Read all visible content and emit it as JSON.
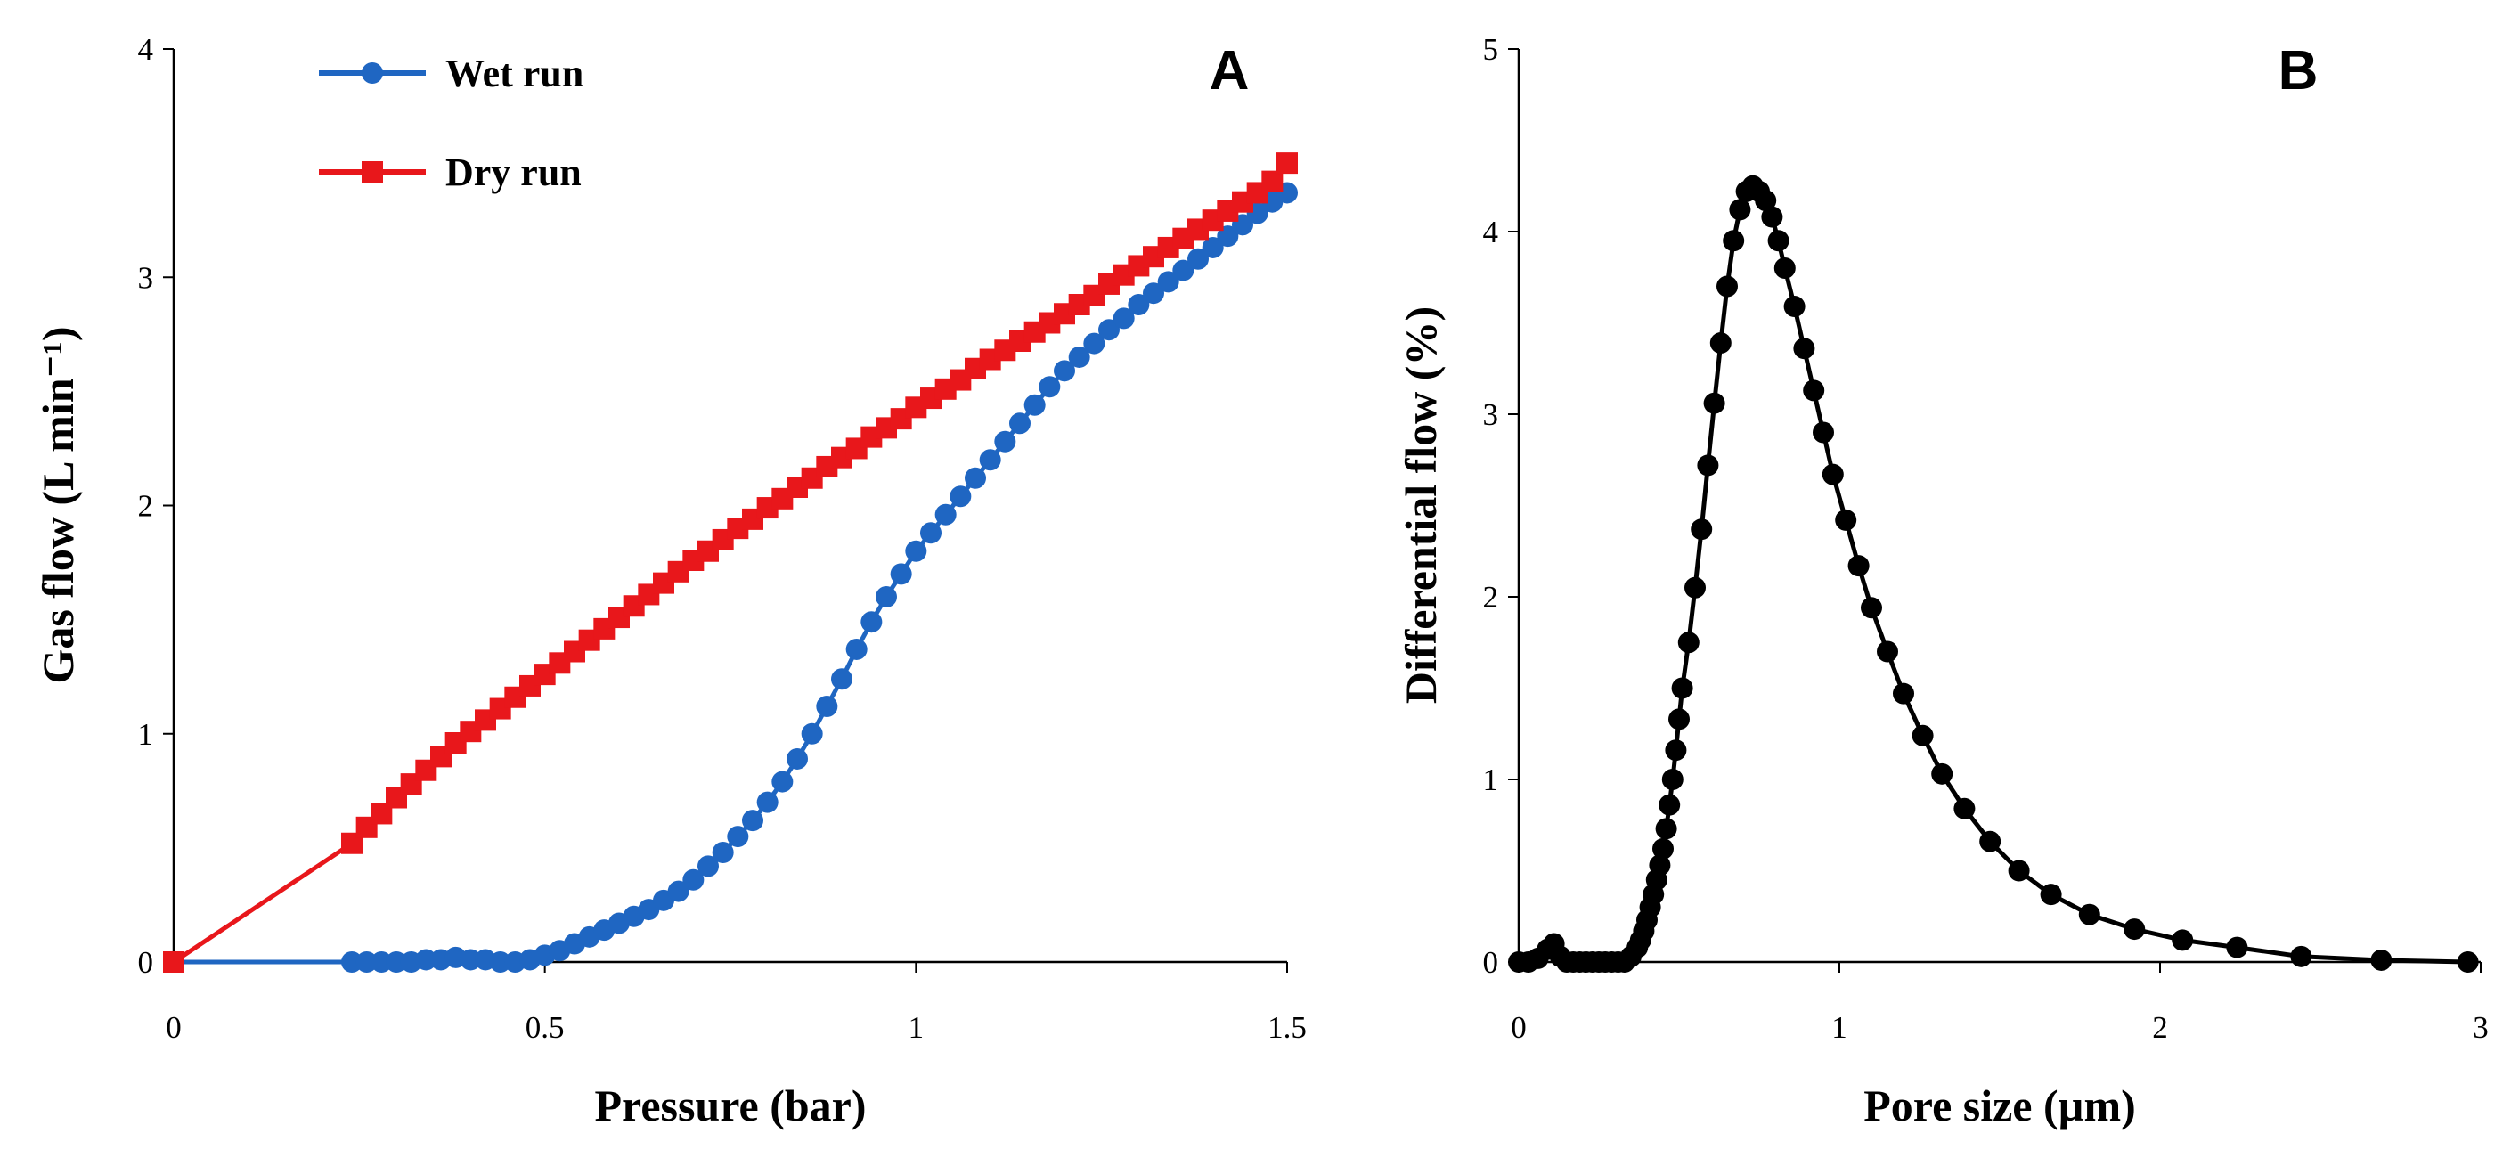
{
  "chart_data": [
    {
      "type": "line",
      "panel_label": "A",
      "xlabel": "Pressure (bar)",
      "ylabel": "Gas flow (L min⁻¹)",
      "xlim": [
        0,
        1.5
      ],
      "ylim": [
        0,
        4
      ],
      "xticks": [
        0,
        0.5,
        1,
        1.5
      ],
      "xtick_labels": [
        "0",
        "0.5",
        "1",
        "1.5"
      ],
      "yticks": [
        0,
        1,
        2,
        3,
        4
      ],
      "ytick_labels": [
        "0",
        "1",
        "2",
        "3",
        "4"
      ],
      "legend_position": "top-left",
      "series": [
        {
          "name": "Wet run",
          "color": "#1f66c2",
          "marker": "circle",
          "x": [
            0,
            0.24,
            0.26,
            0.28,
            0.3,
            0.32,
            0.34,
            0.36,
            0.38,
            0.4,
            0.42,
            0.44,
            0.46,
            0.48,
            0.5,
            0.52,
            0.54,
            0.56,
            0.58,
            0.6,
            0.62,
            0.64,
            0.66,
            0.68,
            0.7,
            0.72,
            0.74,
            0.76,
            0.78,
            0.8,
            0.82,
            0.84,
            0.86,
            0.88,
            0.9,
            0.92,
            0.94,
            0.96,
            0.98,
            1.0,
            1.02,
            1.04,
            1.06,
            1.08,
            1.1,
            1.12,
            1.14,
            1.16,
            1.18,
            1.2,
            1.22,
            1.24,
            1.26,
            1.28,
            1.3,
            1.32,
            1.34,
            1.36,
            1.38,
            1.4,
            1.42,
            1.44,
            1.46,
            1.48,
            1.5
          ],
          "y": [
            0,
            0,
            0,
            0,
            0,
            0,
            0.01,
            0.01,
            0.02,
            0.01,
            0.01,
            0,
            0,
            0.01,
            0.03,
            0.05,
            0.08,
            0.11,
            0.14,
            0.17,
            0.2,
            0.23,
            0.27,
            0.31,
            0.36,
            0.42,
            0.48,
            0.55,
            0.62,
            0.7,
            0.79,
            0.89,
            1.0,
            1.12,
            1.24,
            1.37,
            1.49,
            1.6,
            1.7,
            1.8,
            1.88,
            1.96,
            2.04,
            2.12,
            2.2,
            2.28,
            2.36,
            2.44,
            2.52,
            2.59,
            2.65,
            2.71,
            2.77,
            2.82,
            2.88,
            2.93,
            2.98,
            3.03,
            3.08,
            3.13,
            3.18,
            3.23,
            3.28,
            3.33,
            3.37
          ]
        },
        {
          "name": "Dry run",
          "color": "#e8171b",
          "marker": "square",
          "x": [
            0,
            0.24,
            0.26,
            0.28,
            0.3,
            0.32,
            0.34,
            0.36,
            0.38,
            0.4,
            0.42,
            0.44,
            0.46,
            0.48,
            0.5,
            0.52,
            0.54,
            0.56,
            0.58,
            0.6,
            0.62,
            0.64,
            0.66,
            0.68,
            0.7,
            0.72,
            0.74,
            0.76,
            0.78,
            0.8,
            0.82,
            0.84,
            0.86,
            0.88,
            0.9,
            0.92,
            0.94,
            0.96,
            0.98,
            1.0,
            1.02,
            1.04,
            1.06,
            1.08,
            1.1,
            1.12,
            1.14,
            1.16,
            1.18,
            1.2,
            1.22,
            1.24,
            1.26,
            1.28,
            1.3,
            1.32,
            1.34,
            1.36,
            1.38,
            1.4,
            1.42,
            1.44,
            1.46,
            1.48,
            1.5
          ],
          "y": [
            0,
            0.52,
            0.59,
            0.65,
            0.72,
            0.78,
            0.84,
            0.9,
            0.96,
            1.01,
            1.06,
            1.11,
            1.16,
            1.21,
            1.26,
            1.31,
            1.36,
            1.41,
            1.46,
            1.51,
            1.56,
            1.61,
            1.66,
            1.71,
            1.76,
            1.8,
            1.85,
            1.9,
            1.94,
            1.99,
            2.03,
            2.08,
            2.12,
            2.17,
            2.21,
            2.25,
            2.3,
            2.34,
            2.38,
            2.43,
            2.47,
            2.51,
            2.55,
            2.6,
            2.64,
            2.68,
            2.72,
            2.76,
            2.8,
            2.84,
            2.88,
            2.92,
            2.97,
            3.01,
            3.05,
            3.09,
            3.13,
            3.17,
            3.21,
            3.25,
            3.29,
            3.33,
            3.37,
            3.42,
            3.5
          ]
        }
      ]
    },
    {
      "type": "line",
      "panel_label": "B",
      "xlabel": "Pore size (µm)",
      "ylabel": "Differential flow (%)",
      "xlim": [
        0,
        3
      ],
      "ylim": [
        0,
        5
      ],
      "xticks": [
        0,
        1,
        2,
        3
      ],
      "xtick_labels": [
        "0",
        "1",
        "2",
        "3"
      ],
      "yticks": [
        0,
        1,
        2,
        3,
        4,
        5
      ],
      "ytick_labels": [
        "0",
        "1",
        "2",
        "3",
        "4",
        "5"
      ],
      "series": [
        {
          "name": "Differential flow",
          "color": "#000000",
          "marker": "circle",
          "x": [
            0,
            0.03,
            0.06,
            0.09,
            0.11,
            0.13,
            0.15,
            0.17,
            0.19,
            0.21,
            0.23,
            0.25,
            0.27,
            0.29,
            0.31,
            0.33,
            0.35,
            0.37,
            0.38,
            0.39,
            0.4,
            0.41,
            0.42,
            0.43,
            0.44,
            0.45,
            0.46,
            0.47,
            0.48,
            0.49,
            0.5,
            0.51,
            0.53,
            0.55,
            0.57,
            0.59,
            0.61,
            0.63,
            0.65,
            0.67,
            0.69,
            0.71,
            0.73,
            0.75,
            0.77,
            0.79,
            0.81,
            0.83,
            0.86,
            0.89,
            0.92,
            0.95,
            0.98,
            1.02,
            1.06,
            1.1,
            1.15,
            1.2,
            1.26,
            1.32,
            1.39,
            1.47,
            1.56,
            1.66,
            1.78,
            1.92,
            2.07,
            2.24,
            2.44,
            2.69,
            2.96
          ],
          "y": [
            0,
            0,
            0.02,
            0.07,
            0.1,
            0.03,
            0,
            0,
            0,
            0,
            0,
            0,
            0,
            0,
            0,
            0,
            0.03,
            0.08,
            0.12,
            0.17,
            0.23,
            0.3,
            0.37,
            0.45,
            0.53,
            0.62,
            0.73,
            0.86,
            1.0,
            1.16,
            1.33,
            1.5,
            1.75,
            2.05,
            2.37,
            2.72,
            3.06,
            3.39,
            3.7,
            3.95,
            4.12,
            4.22,
            4.25,
            4.22,
            4.17,
            4.08,
            3.95,
            3.8,
            3.59,
            3.36,
            3.13,
            2.9,
            2.67,
            2.42,
            2.17,
            1.94,
            1.7,
            1.47,
            1.24,
            1.03,
            0.84,
            0.66,
            0.5,
            0.37,
            0.26,
            0.18,
            0.12,
            0.08,
            0.03,
            0.01,
            0
          ]
        }
      ]
    }
  ]
}
